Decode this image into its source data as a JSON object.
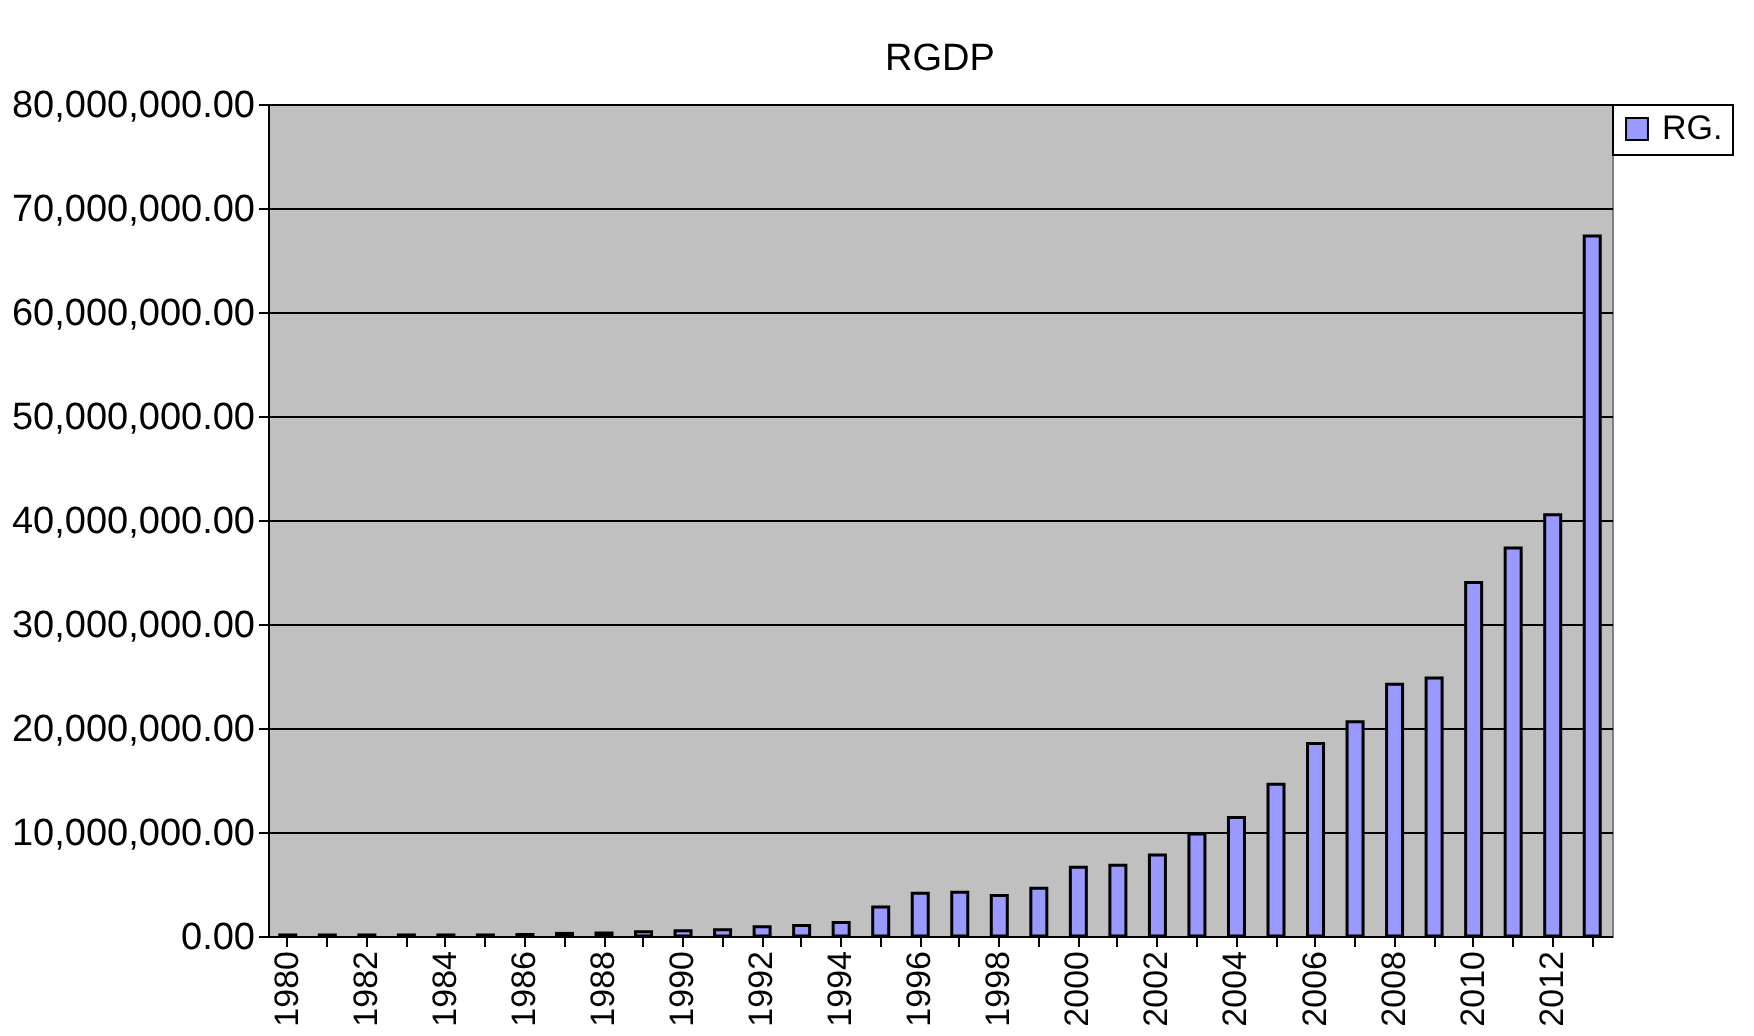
{
  "chart_data": {
    "type": "bar",
    "title": "RGDP",
    "categories": [
      "1980",
      null,
      "1982",
      null,
      "1984",
      null,
      "1986",
      null,
      "1988",
      null,
      "1990",
      null,
      "1992",
      null,
      "1994",
      null,
      "1996",
      null,
      "1998",
      null,
      "2000",
      null,
      "2002",
      null,
      "2004",
      null,
      "2006",
      null,
      "2008",
      null,
      "2010",
      null,
      "2012",
      null
    ],
    "series": [
      {
        "name": "RG.",
        "color": "#9999ff",
        "values": [
          100000,
          100000,
          100000,
          100000,
          100000,
          100000,
          150000,
          250000,
          300000,
          400000,
          500000,
          600000,
          900000,
          1000000,
          1300000,
          2800000,
          4100000,
          4200000,
          3900000,
          4600000,
          6600000,
          6800000,
          7800000,
          9800000,
          11400000,
          14600000,
          18500000,
          20600000,
          24200000,
          24800000,
          34000000,
          37300000,
          40500000,
          67300000
        ]
      }
    ],
    "ylim": [
      0,
      80000000
    ],
    "yticks": [
      {
        "value": 0,
        "label": "0.00"
      },
      {
        "value": 10000000,
        "label": "10,000,000.00"
      },
      {
        "value": 20000000,
        "label": "20,000,000.00"
      },
      {
        "value": 30000000,
        "label": "30,000,000.00"
      },
      {
        "value": 40000000,
        "label": "40,000,000.00"
      },
      {
        "value": 50000000,
        "label": "50,000,000.00"
      },
      {
        "value": 60000000,
        "label": "60,000,000.00"
      },
      {
        "value": 70000000,
        "label": "70,000,000.00"
      },
      {
        "value": 80000000,
        "label": "80,000,000.00"
      }
    ],
    "grid": "y",
    "legend": "right"
  }
}
